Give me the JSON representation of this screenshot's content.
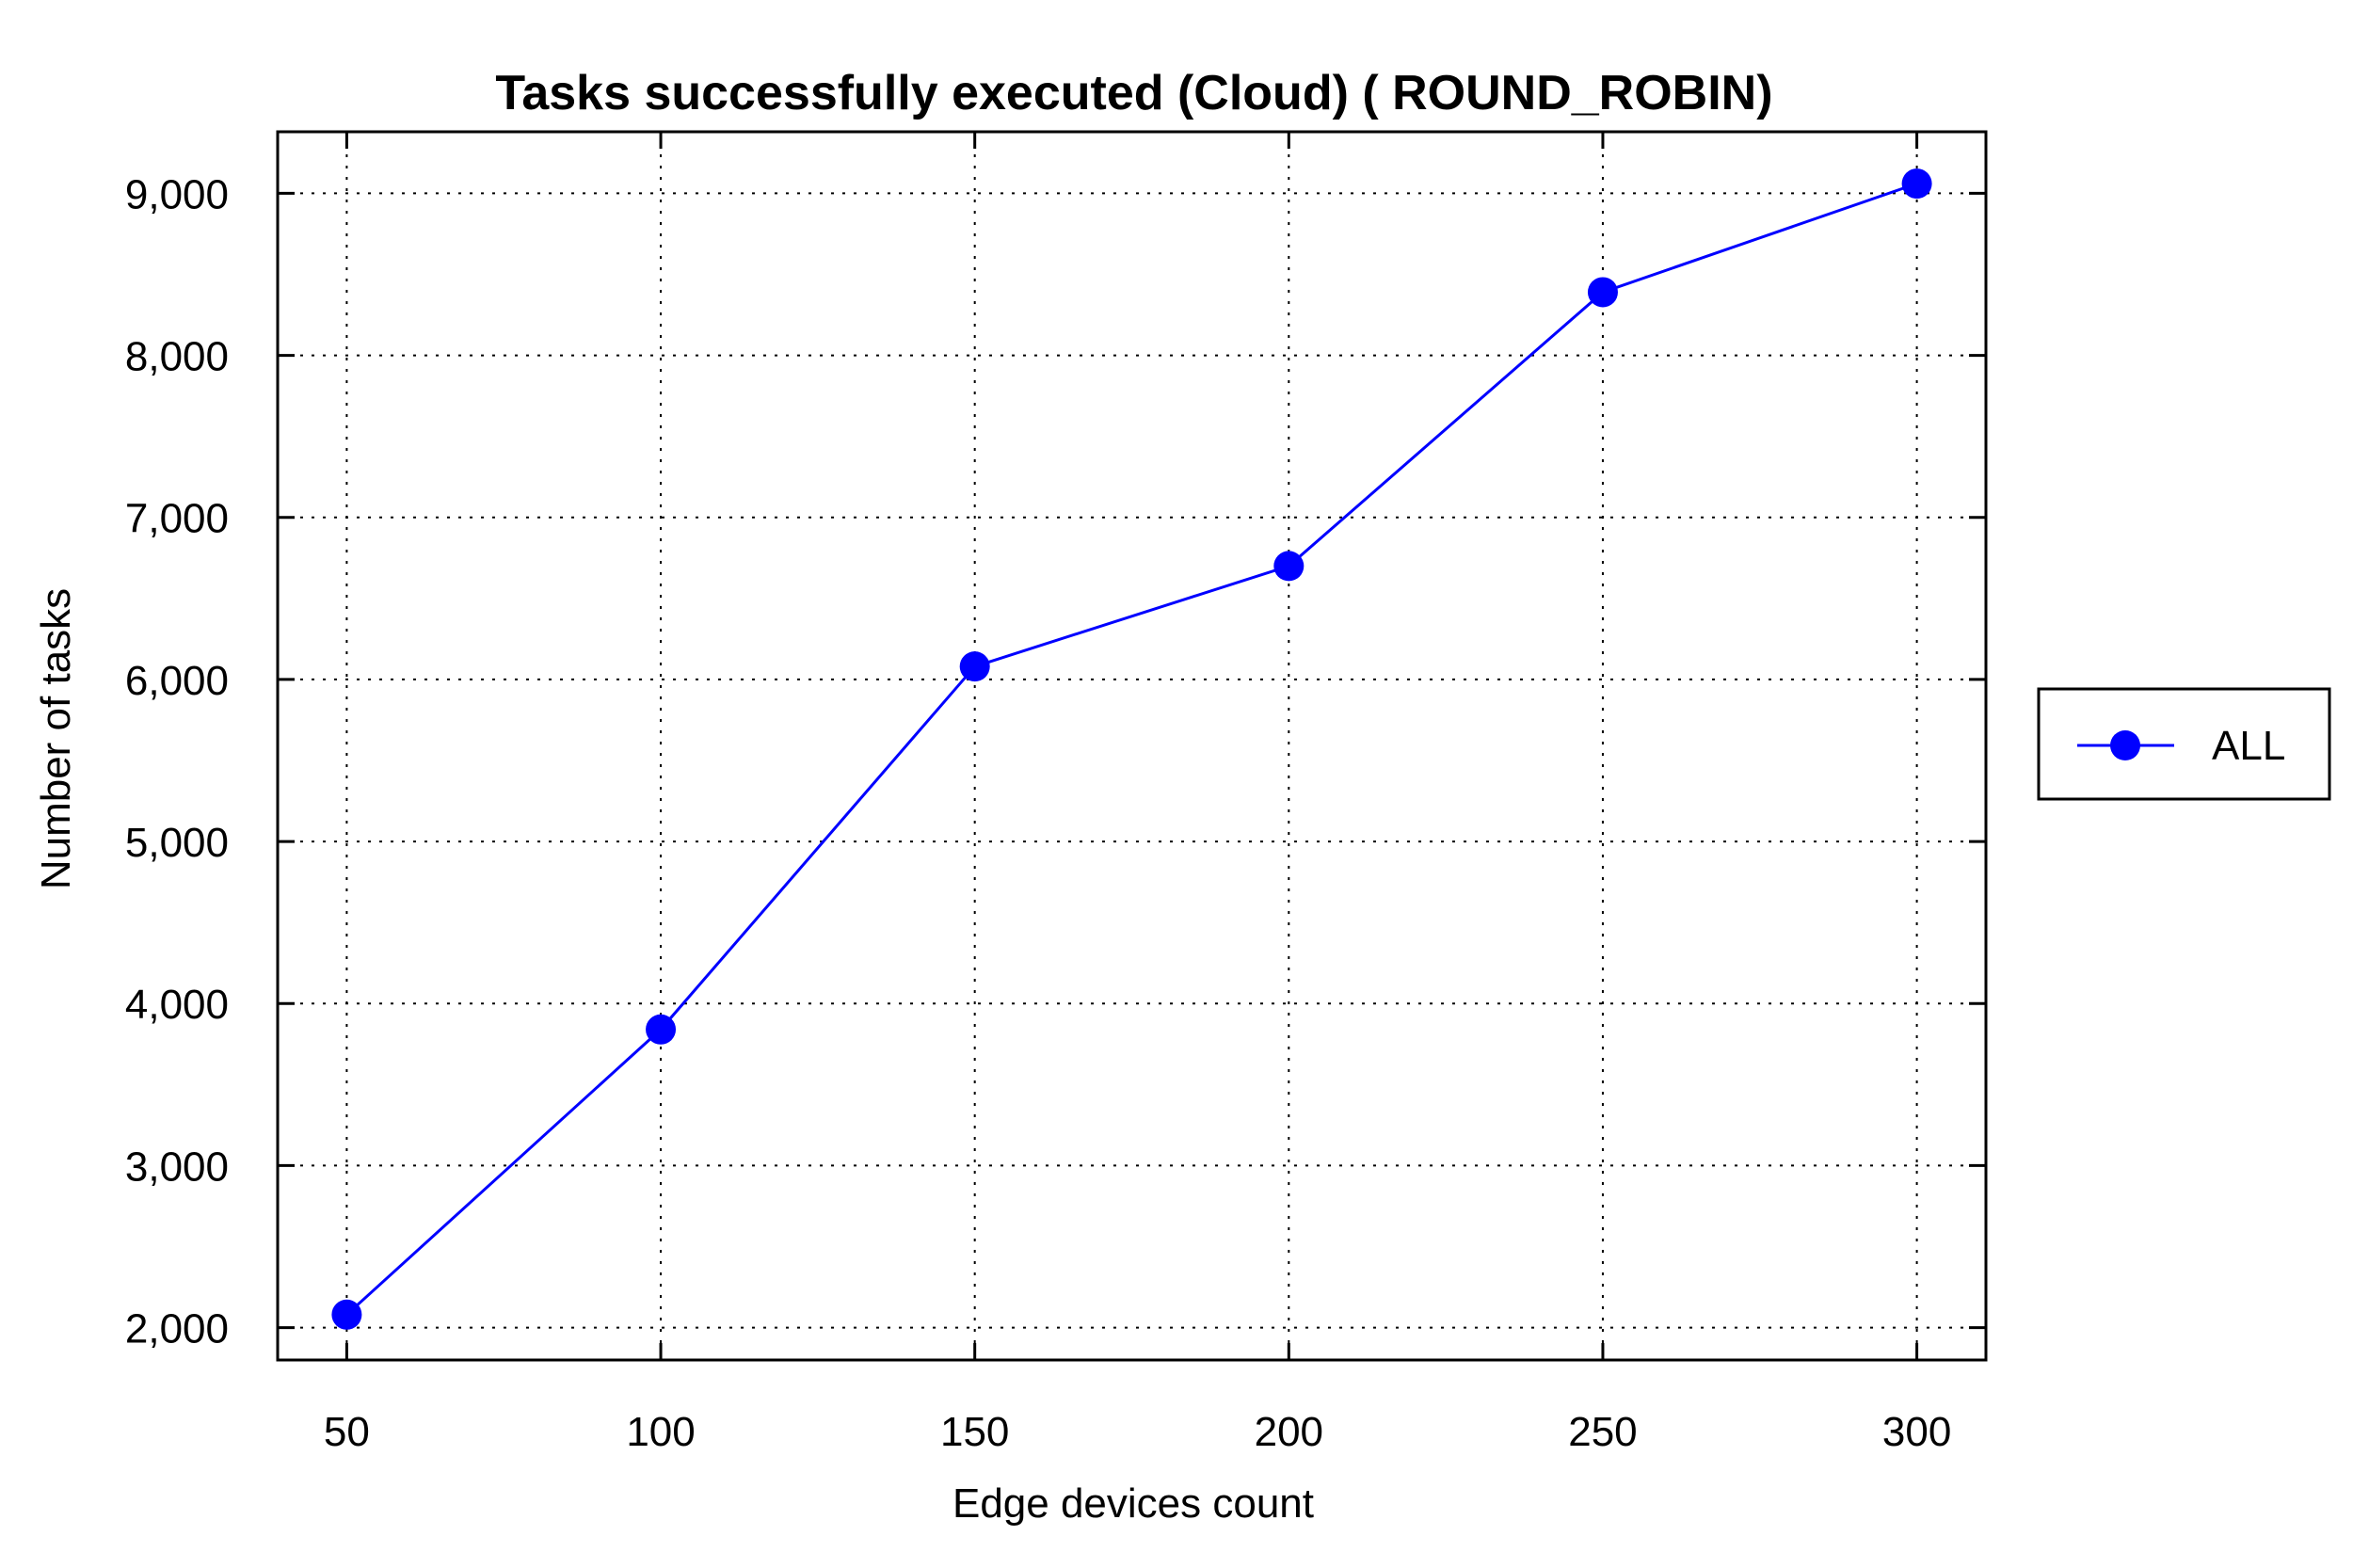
{
  "chart_data": {
    "type": "line",
    "title": "Tasks successfully executed (Cloud) ( ROUND_ROBIN)",
    "xlabel": "Edge devices count",
    "ylabel": "Number of tasks",
    "x": [
      50,
      100,
      150,
      200,
      250,
      300
    ],
    "xticks": [
      "50",
      "100",
      "150",
      "200",
      "250",
      "300"
    ],
    "yticks": [
      {
        "value": 2000,
        "label": "2,000"
      },
      {
        "value": 3000,
        "label": "3,000"
      },
      {
        "value": 4000,
        "label": "4,000"
      },
      {
        "value": 5000,
        "label": "5,000"
      },
      {
        "value": 6000,
        "label": "6,000"
      },
      {
        "value": 7000,
        "label": "7,000"
      },
      {
        "value": 8000,
        "label": "8,000"
      },
      {
        "value": 9000,
        "label": "9,000"
      }
    ],
    "xlim": [
      39,
      311
    ],
    "ylim": [
      1800,
      9380
    ],
    "grid": true,
    "legend_position": "right",
    "series": [
      {
        "name": "ALL",
        "color": "#0000ff",
        "values": [
          2080,
          3840,
          6080,
          6700,
          8390,
          9060
        ]
      }
    ]
  }
}
